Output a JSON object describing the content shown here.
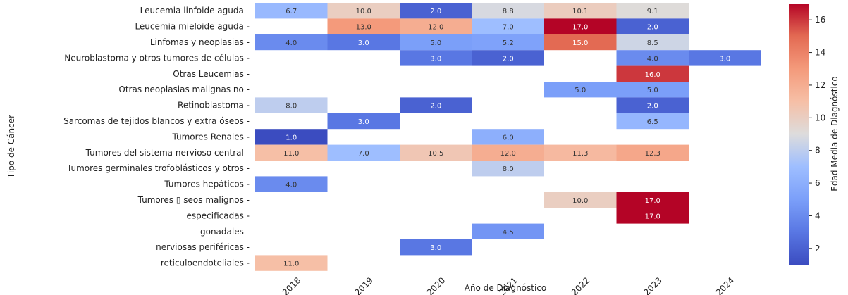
{
  "chart_data": {
    "type": "heatmap",
    "xlabel": "Año de Diagnóstico",
    "ylabel": "Tipo de Cáncer",
    "colorbar_label": "Edad Media de Diagnóstico",
    "colorbar_range": [
      1,
      17
    ],
    "colorbar_ticks": [
      2,
      4,
      6,
      8,
      10,
      12,
      14,
      16
    ],
    "colormap": "coolwarm",
    "years": [
      "2018",
      "2019",
      "2020",
      "2021",
      "2022",
      "2023",
      "2024"
    ],
    "rows": [
      {
        "label": "Leucemia linfoide aguda",
        "values": [
          6.7,
          10.0,
          2.0,
          8.8,
          10.1,
          9.1,
          null
        ]
      },
      {
        "label": "Leucemia mieloide aguda",
        "values": [
          null,
          13.0,
          12.0,
          7.0,
          17.0,
          2.0,
          null
        ]
      },
      {
        "label": "Linfomas y neoplasias",
        "values": [
          4.0,
          3.0,
          5.0,
          5.2,
          15.0,
          8.5,
          null
        ]
      },
      {
        "label": "Neuroblastoma y otros tumores de células",
        "values": [
          null,
          null,
          3.0,
          2.0,
          null,
          4.0,
          3.0
        ]
      },
      {
        "label": "Otras Leucemias",
        "values": [
          null,
          null,
          null,
          null,
          null,
          16.0,
          null
        ]
      },
      {
        "label": "Otras neoplasias malignas no",
        "values": [
          null,
          null,
          null,
          null,
          5.0,
          5.0,
          null
        ]
      },
      {
        "label": "Retinoblastoma",
        "values": [
          8.0,
          null,
          2.0,
          null,
          null,
          2.0,
          null
        ]
      },
      {
        "label": "Sarcomas de tejidos blancos y extra óseos",
        "values": [
          null,
          3.0,
          null,
          null,
          null,
          6.5,
          null
        ]
      },
      {
        "label": "Tumores Renales",
        "values": [
          1.0,
          null,
          null,
          6.0,
          null,
          null,
          null
        ]
      },
      {
        "label": "Tumores del sistema nervioso central",
        "values": [
          11.0,
          7.0,
          10.5,
          12.0,
          11.3,
          12.3,
          null
        ]
      },
      {
        "label": "Tumores germinales trofoblásticos y otros",
        "values": [
          null,
          null,
          null,
          8.0,
          null,
          null,
          null
        ]
      },
      {
        "label": "Tumores hepáticos",
        "values": [
          4.0,
          null,
          null,
          null,
          null,
          null,
          null
        ]
      },
      {
        "label": "Tumores ▯ seos malignos",
        "values": [
          null,
          null,
          null,
          null,
          10.0,
          17.0,
          null
        ]
      },
      {
        "label": "especificadas",
        "values": [
          null,
          null,
          null,
          null,
          null,
          17.0,
          null
        ]
      },
      {
        "label": "gonadales",
        "values": [
          null,
          null,
          null,
          4.5,
          null,
          null,
          null
        ]
      },
      {
        "label": "nerviosas periféricas",
        "values": [
          null,
          null,
          3.0,
          null,
          null,
          null,
          null
        ]
      },
      {
        "label": "reticuloendoteliales",
        "values": [
          11.0,
          null,
          null,
          null,
          null,
          null,
          null
        ]
      }
    ]
  }
}
